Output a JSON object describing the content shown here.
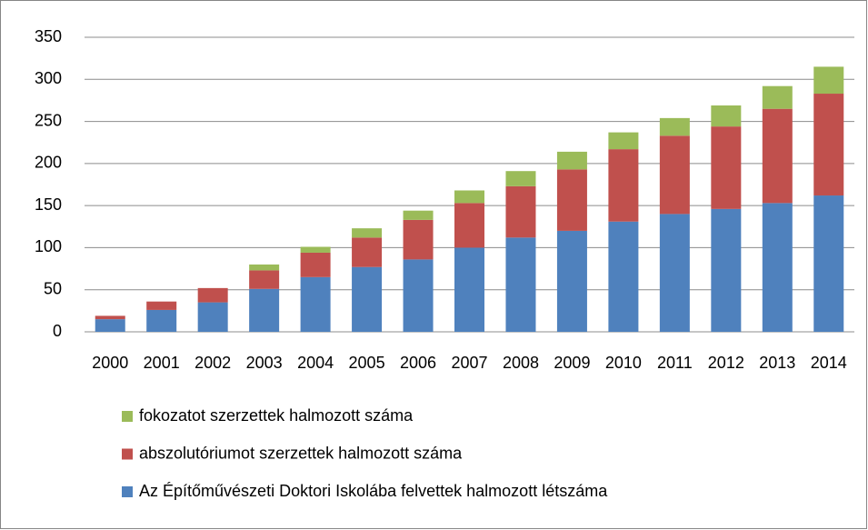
{
  "chart_data": {
    "type": "stacked_bar",
    "categories": [
      "2000",
      "2001",
      "2002",
      "2003",
      "2004",
      "2005",
      "2006",
      "2007",
      "2008",
      "2009",
      "2010",
      "2011",
      "2012",
      "2013",
      "2014"
    ],
    "series": [
      {
        "name": "Az Építőművészeti Doktori Iskolába felvettek halmozott létszáma",
        "color": "#4f81bd",
        "values": [
          15,
          26,
          35,
          51,
          65,
          77,
          86,
          100,
          112,
          120,
          131,
          140,
          146,
          153,
          162
        ]
      },
      {
        "name": "abszolutóriumot szerzettek halmozott száma",
        "color": "#c0504d",
        "values": [
          4,
          10,
          17,
          22,
          29,
          35,
          47,
          53,
          61,
          73,
          86,
          93,
          98,
          112,
          121
        ]
      },
      {
        "name": "fokozatot szerzettek halmozott száma",
        "color": "#9bbb59",
        "values": [
          0,
          0,
          0,
          7,
          7,
          11,
          11,
          15,
          18,
          21,
          20,
          21,
          25,
          27,
          32
        ]
      }
    ],
    "ylim": [
      0,
      350
    ],
    "yticks": [
      0,
      50,
      100,
      150,
      200,
      250,
      300,
      350
    ],
    "grid": true,
    "legend_position": "bottom"
  }
}
